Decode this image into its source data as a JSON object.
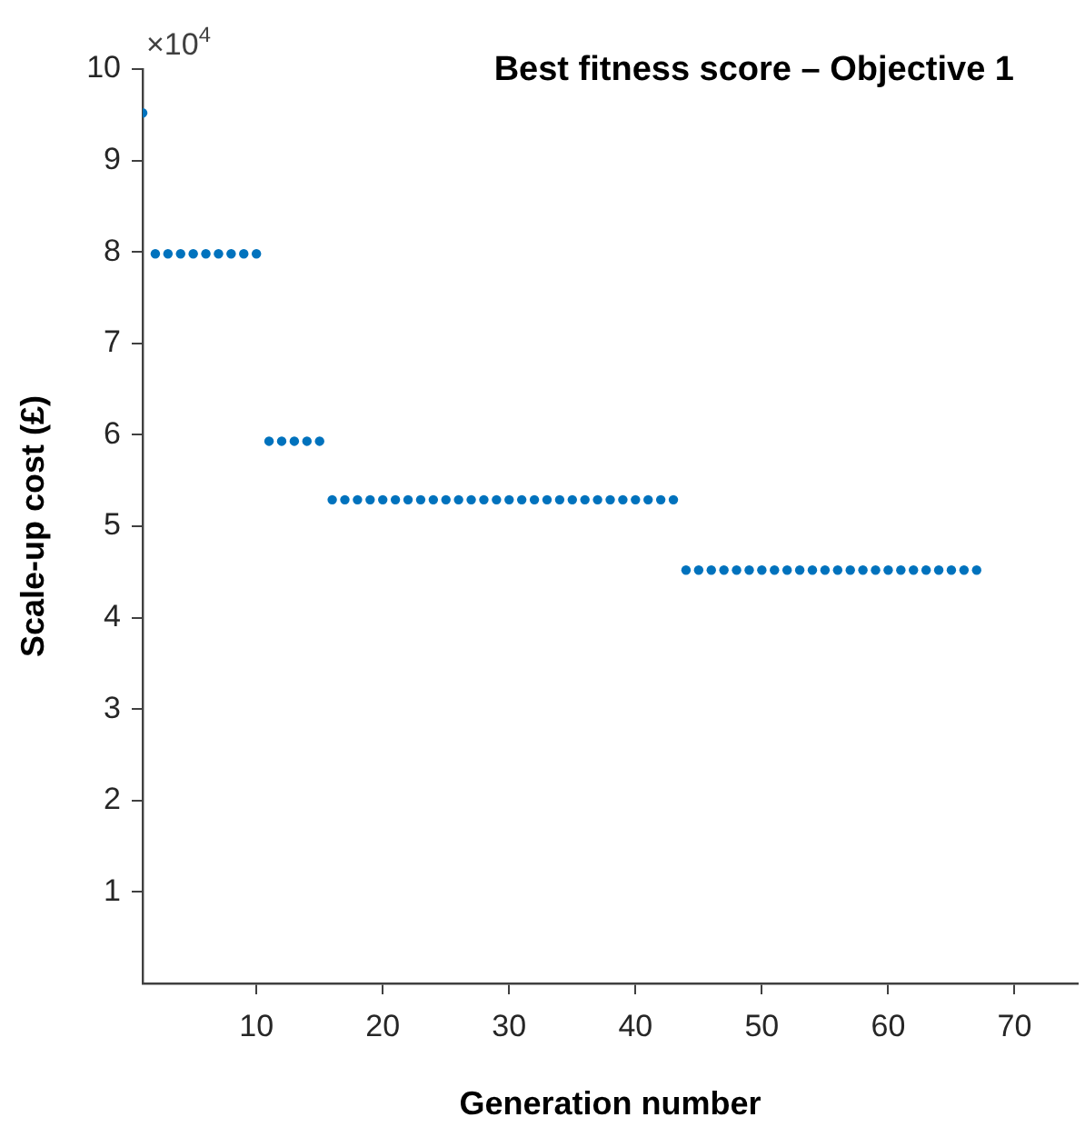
{
  "chart_data": {
    "type": "scatter",
    "title": "Best fitness score – Objective 1",
    "xlabel": "Generation number",
    "ylabel": "Scale-up cost (£)",
    "annotations": [
      "×10$^{4}$"
    ],
    "x": [
      1,
      2,
      3,
      4,
      5,
      6,
      7,
      8,
      9,
      10,
      11,
      12,
      13,
      14,
      15,
      16,
      17,
      18,
      19,
      20,
      21,
      22,
      23,
      24,
      25,
      26,
      27,
      28,
      29,
      30,
      31,
      32,
      33,
      34,
      35,
      36,
      37,
      38,
      39,
      40,
      41,
      42,
      43,
      44,
      45,
      46,
      47,
      48,
      49,
      50,
      51,
      52,
      53,
      54,
      55,
      56,
      57,
      58,
      59,
      60,
      61,
      62,
      63,
      64,
      65,
      66,
      67
    ],
    "series": [
      {
        "color": "#0072bd",
        "values": [
          9.52,
          7.98,
          7.98,
          7.98,
          7.98,
          7.98,
          7.98,
          7.98,
          7.98,
          7.98,
          5.93,
          5.93,
          5.93,
          5.93,
          5.93,
          5.29,
          5.29,
          5.29,
          5.29,
          5.29,
          5.29,
          5.29,
          5.29,
          5.29,
          5.29,
          5.29,
          5.29,
          5.29,
          5.29,
          5.29,
          5.29,
          5.29,
          5.29,
          5.29,
          5.29,
          5.29,
          5.29,
          5.29,
          5.29,
          5.29,
          5.29,
          5.29,
          5.29,
          4.52,
          4.52,
          4.52,
          4.52,
          4.52,
          4.52,
          4.52,
          4.52,
          4.52,
          4.52,
          4.52,
          4.52,
          4.52,
          4.52,
          4.52,
          4.52,
          4.52,
          4.52,
          4.52,
          4.52,
          4.52,
          4.52,
          4.52,
          4.52
        ]
      }
    ],
    "xlim": [
      1,
      75
    ],
    "xticks": [
      10,
      20,
      30,
      40,
      50,
      60,
      70
    ],
    "ylim": [
      0,
      10
    ],
    "yticks": [
      1,
      2,
      3,
      4,
      5,
      6,
      7,
      8,
      9,
      10
    ],
    "grid": false,
    "legend": false,
    "marker": "circle"
  }
}
